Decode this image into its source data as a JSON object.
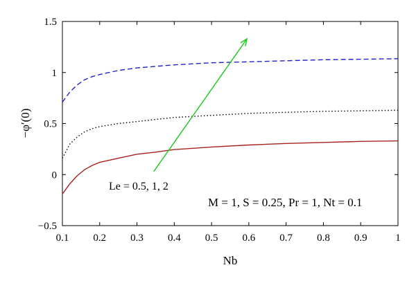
{
  "chart_data": {
    "type": "line",
    "xlabel": "Nb",
    "ylabel": "−φ′(0)",
    "xlim": [
      0.1,
      1.0
    ],
    "ylim": [
      -0.5,
      1.5
    ],
    "grid": false,
    "x_ticks": [
      "0.1",
      "0.2",
      "0.3",
      "0.4",
      "0.5",
      "0.6",
      "0.7",
      "0.8",
      "0.9",
      "1"
    ],
    "y_ticks": [
      "−0.5",
      "0",
      "0.5",
      "1",
      "1.5"
    ],
    "x_tick_values": [
      0.1,
      0.2,
      0.3,
      0.4,
      0.5,
      0.6,
      0.7,
      0.8,
      0.9,
      1.0
    ],
    "y_tick_values": [
      -0.5,
      0,
      0.5,
      1,
      1.5
    ],
    "series": [
      {
        "style": "solid",
        "color": "#a8201c",
        "x": [
          0.1,
          0.12,
          0.14,
          0.16,
          0.18,
          0.2,
          0.25,
          0.3,
          0.35,
          0.4,
          0.5,
          0.6,
          0.7,
          0.8,
          0.9,
          1.0
        ],
        "y": [
          -0.19,
          -0.09,
          -0.01,
          0.05,
          0.09,
          0.12,
          0.16,
          0.2,
          0.22,
          0.245,
          0.27,
          0.29,
          0.305,
          0.315,
          0.325,
          0.33
        ]
      },
      {
        "style": "dotted",
        "color": "#000000",
        "x": [
          0.1,
          0.12,
          0.14,
          0.16,
          0.18,
          0.2,
          0.25,
          0.3,
          0.35,
          0.4,
          0.5,
          0.6,
          0.7,
          0.8,
          0.9,
          1.0
        ],
        "y": [
          0.16,
          0.3,
          0.37,
          0.42,
          0.45,
          0.47,
          0.5,
          0.52,
          0.54,
          0.56,
          0.58,
          0.6,
          0.61,
          0.62,
          0.625,
          0.63
        ]
      },
      {
        "style": "dashed",
        "color": "#2020c8",
        "x": [
          0.1,
          0.12,
          0.14,
          0.16,
          0.18,
          0.2,
          0.25,
          0.3,
          0.35,
          0.4,
          0.5,
          0.6,
          0.7,
          0.8,
          0.9,
          1.0
        ],
        "y": [
          0.71,
          0.81,
          0.88,
          0.93,
          0.96,
          0.98,
          1.02,
          1.045,
          1.06,
          1.075,
          1.095,
          1.105,
          1.115,
          1.125,
          1.13,
          1.135
        ]
      }
    ],
    "annotations": [
      {
        "text": "Le = 0.5, 1, 2"
      },
      {
        "text": "M = 1, S = 0.25, Pr = 1, Nt = 0.1"
      }
    ],
    "arrow": {
      "color": "#22cc22",
      "from": [
        0.345,
        0.03
      ],
      "to": [
        0.595,
        1.33
      ]
    }
  }
}
